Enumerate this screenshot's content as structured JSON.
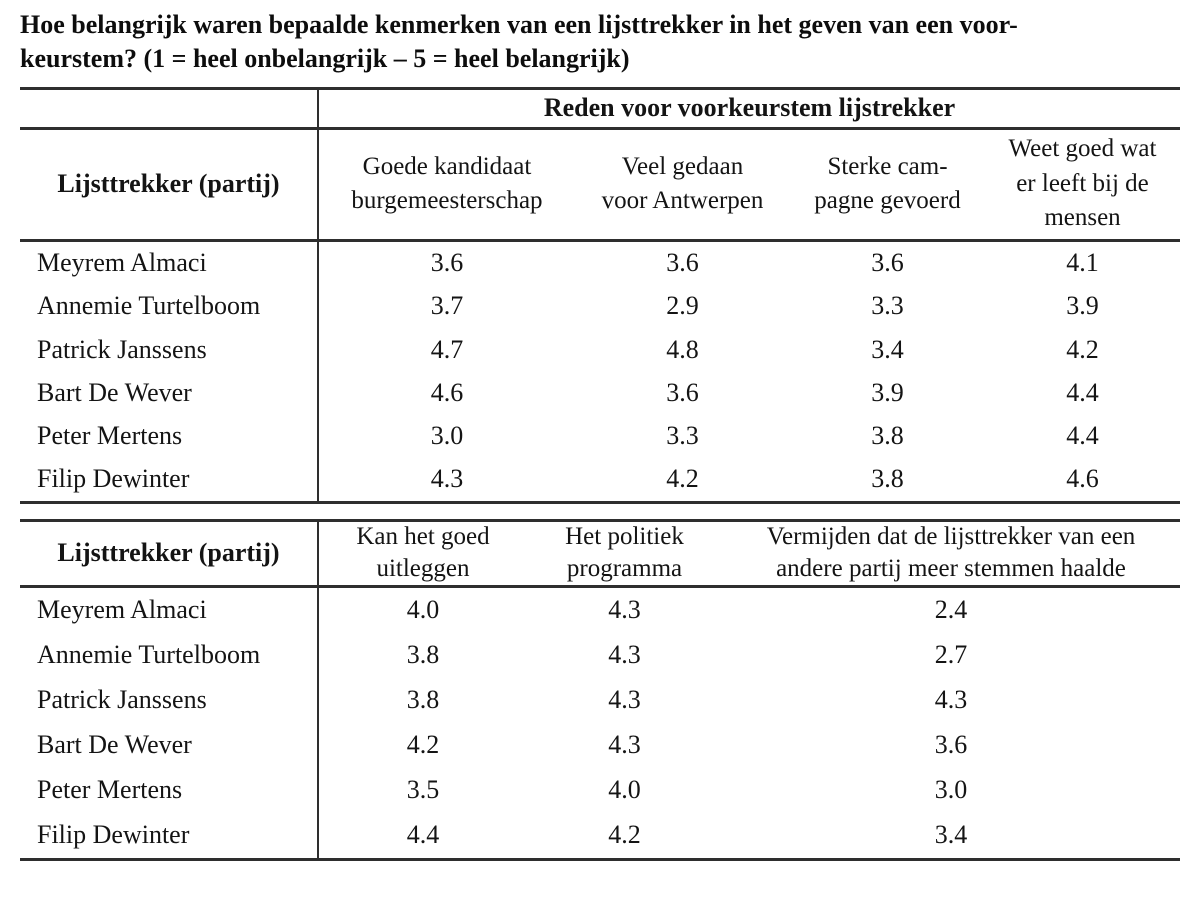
{
  "title": "Hoe belangrijk waren bepaalde kenmerken van een lijsttrekker in het geven van een voor-\nkeurstem? (1 = heel onbelangrijk – 5 = heel belangrijk)",
  "chart_data": [
    {
      "type": "table",
      "span_header": "Reden voor voorkeurstem lijstrekker",
      "row_header_label": "Lijsttrekker (partij)",
      "columns": [
        "Goede kandidaat\nburgemeesterschap",
        "Veel gedaan\nvoor Antwerpen",
        "Sterke cam-\npagne gevoerd",
        "Weet goed wat\ner leeft bij de\nmensen"
      ],
      "rows": [
        {
          "name": "Meyrem Almaci",
          "values": [
            "3.6",
            "3.6",
            "3.6",
            "4.1"
          ]
        },
        {
          "name": "Annemie Turtelboom",
          "values": [
            "3.7",
            "2.9",
            "3.3",
            "3.9"
          ]
        },
        {
          "name": "Patrick Janssens",
          "values": [
            "4.7",
            "4.8",
            "3.4",
            "4.2"
          ]
        },
        {
          "name": "Bart De Wever",
          "values": [
            "4.6",
            "3.6",
            "3.9",
            "4.4"
          ]
        },
        {
          "name": "Peter Mertens",
          "values": [
            "3.0",
            "3.3",
            "3.8",
            "4.4"
          ]
        },
        {
          "name": "Filip Dewinter",
          "values": [
            "4.3",
            "4.2",
            "3.8",
            "4.6"
          ]
        }
      ],
      "scale_note": "1 = heel onbelangrijk, 5 = heel belangrijk",
      "value_range": [
        1,
        5
      ]
    },
    {
      "type": "table",
      "row_header_label": "Lijsttrekker (partij)",
      "columns": [
        "Kan het goed\nuitleggen",
        "Het politiek\nprogramma",
        "Vermijden dat de lijsttrekker van een\nandere partij meer stemmen haalde"
      ],
      "rows": [
        {
          "name": "Meyrem Almaci",
          "values": [
            "4.0",
            "4.3",
            "2.4"
          ]
        },
        {
          "name": "Annemie Turtelboom",
          "values": [
            "3.8",
            "4.3",
            "2.7"
          ]
        },
        {
          "name": "Patrick Janssens",
          "values": [
            "3.8",
            "4.3",
            "4.3"
          ]
        },
        {
          "name": "Bart De Wever",
          "values": [
            "4.2",
            "4.3",
            "3.6"
          ]
        },
        {
          "name": "Peter Mertens",
          "values": [
            "3.5",
            "4.0",
            "3.0"
          ]
        },
        {
          "name": "Filip Dewinter",
          "values": [
            "4.4",
            "4.2",
            "3.4"
          ]
        }
      ],
      "scale_note": "1 = heel onbelangrijk, 5 = heel belangrijk",
      "value_range": [
        1,
        5
      ]
    }
  ],
  "colors": {
    "background": "#ffffff",
    "text": "#141414",
    "rule": "#2e2e2e"
  }
}
